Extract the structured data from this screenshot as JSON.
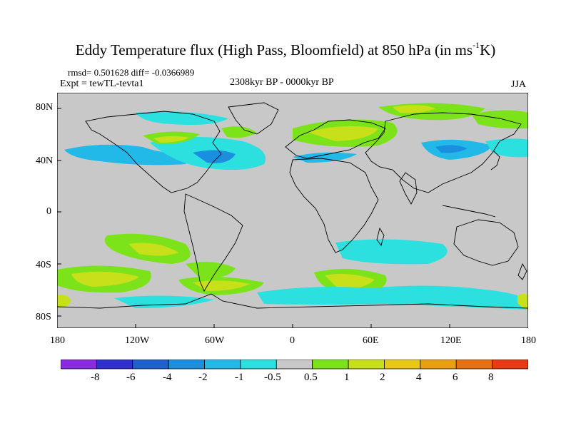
{
  "title": {
    "main": "Eddy Temperature flux (High Pass, Bloomfield) at 850 hPa (in ms",
    "exponent": "-1",
    "tail": "K)"
  },
  "stats_line": "rmsd= 0.501628 diff= -0.0366989",
  "expt_label": "Expt = tewTL-tevta1",
  "period_label": "2308kyr BP - 0000kyr BP",
  "season_label": "JJA",
  "lat_labels": [
    "80N",
    "40N",
    "0",
    "40S",
    "80S"
  ],
  "lon_labels": [
    "180",
    "120W",
    "60W",
    "0",
    "60E",
    "120E",
    "180"
  ],
  "colorbar": {
    "labels": [
      "-8",
      "-6",
      "-4",
      "-2",
      "-1",
      "-0.5",
      "0.5",
      "1",
      "2",
      "4",
      "6",
      "8"
    ],
    "colors": [
      "#8a2be2",
      "#3030d0",
      "#1f5fd0",
      "#1a8fe0",
      "#22b8e8",
      "#2ce0e0",
      "#c8c8c8",
      "#7ce31a",
      "#c8e01a",
      "#e8c814",
      "#e8a010",
      "#e87010",
      "#e83a14"
    ]
  },
  "map_colors": {
    "background": "#c8c8c8",
    "positive_1": "#7ce31a",
    "positive_2": "#c8e01a",
    "positive_3": "#e8c814",
    "negative_1": "#2ce0e0",
    "negative_2": "#22b8e8",
    "negative_3": "#1a8fe0"
  }
}
